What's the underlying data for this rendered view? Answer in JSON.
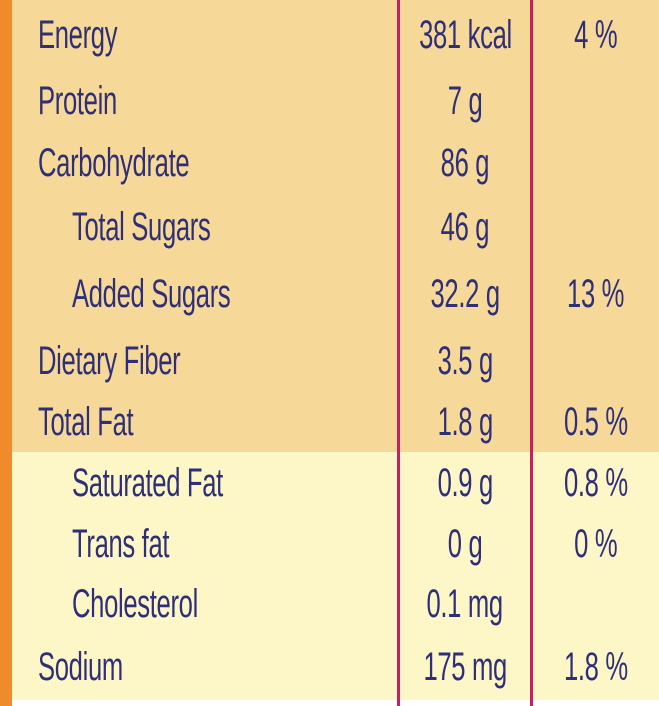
{
  "rows": [
    {
      "name": "Energy",
      "amount": "381 kcal",
      "dv": "4 %",
      "indent": false,
      "shade": "dark"
    },
    {
      "name": "Protein",
      "amount": "7 g",
      "dv": "",
      "indent": false,
      "shade": "dark"
    },
    {
      "name": "Carbohydrate",
      "amount": "86 g",
      "dv": "",
      "indent": false,
      "shade": "dark"
    },
    {
      "name": "Total Sugars",
      "amount": "46 g",
      "dv": "",
      "indent": true,
      "shade": "dark"
    },
    {
      "name": "Added Sugars",
      "amount": "32.2 g",
      "dv": "13 %",
      "indent": true,
      "shade": "dark"
    },
    {
      "name": "Dietary Fiber",
      "amount": "3.5 g",
      "dv": "",
      "indent": false,
      "shade": "dark"
    },
    {
      "name": "Total Fat",
      "amount": "1.8 g",
      "dv": "0.5 %",
      "indent": false,
      "shade": "dark"
    },
    {
      "name": "Saturated Fat",
      "amount": "0.9 g",
      "dv": "0.8 %",
      "indent": true,
      "shade": "light"
    },
    {
      "name": "Trans fat",
      "amount": "0 g",
      "dv": "0 %",
      "indent": true,
      "shade": "light"
    },
    {
      "name": "Cholesterol",
      "amount": "0.1 mg",
      "dv": "",
      "indent": true,
      "shade": "light"
    },
    {
      "name": "Sodium",
      "amount": "175 mg",
      "dv": "1.8 %",
      "indent": false,
      "shade": "light"
    }
  ],
  "colors": {
    "text": "#2f2f78",
    "dark_band": "#f6d999",
    "light_band": "#fdf7c8",
    "divider": "#c81f5e",
    "accent_stripe": "#ef8b2b"
  }
}
